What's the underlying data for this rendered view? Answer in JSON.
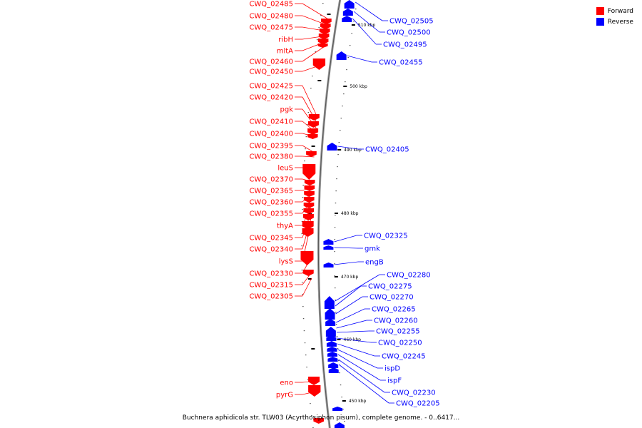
{
  "legend": [
    {
      "label": "Forward",
      "color": "#ff0000"
    },
    {
      "label": "Reverse",
      "color": "#0000ff"
    }
  ],
  "caption": "Buchnera aphidicola str. TLW03 (Acyrthosiphon pisum), complete genome. - 0..6417...",
  "strand_colors": {
    "forward": "#ff0000",
    "reverse": "#0000ff",
    "backbone": "#888888"
  },
  "ticks": [
    {
      "label": "510 kbp"
    },
    {
      "label": "500 kbp"
    },
    {
      "label": "490 kbp"
    },
    {
      "label": "480 kbp"
    },
    {
      "label": "470 kbp"
    },
    {
      "label": "460 kbp"
    },
    {
      "label": "450 kbp"
    }
  ],
  "forward_genes": [
    "CWQ_02485",
    "CWQ_02480",
    "CWQ_02475",
    "ribH",
    "mltA",
    "CWQ_02460",
    "CWQ_02450",
    "CWQ_02425",
    "CWQ_02420",
    "pgk",
    "CWQ_02410",
    "CWQ_02400",
    "CWQ_02395",
    "CWQ_02380",
    "leuS",
    "CWQ_02370",
    "CWQ_02365",
    "CWQ_02360",
    "CWQ_02355",
    "thyA",
    "CWQ_02345",
    "CWQ_02340",
    "lysS",
    "CWQ_02330",
    "CWQ_02315",
    "CWQ_02305",
    "eno",
    "pyrG"
  ],
  "reverse_genes": [
    "CWQ_02505",
    "CWQ_02500",
    "CWQ_02495",
    "CWQ_02455",
    "CWQ_02405",
    "CWQ_02325",
    "gmk",
    "engB",
    "CWQ_02280",
    "CWQ_02275",
    "CWQ_02270",
    "CWQ_02265",
    "CWQ_02260",
    "CWQ_02255",
    "CWQ_02250",
    "CWQ_02245",
    "ispD",
    "ispF",
    "CWQ_02230",
    "CWQ_02205"
  ]
}
